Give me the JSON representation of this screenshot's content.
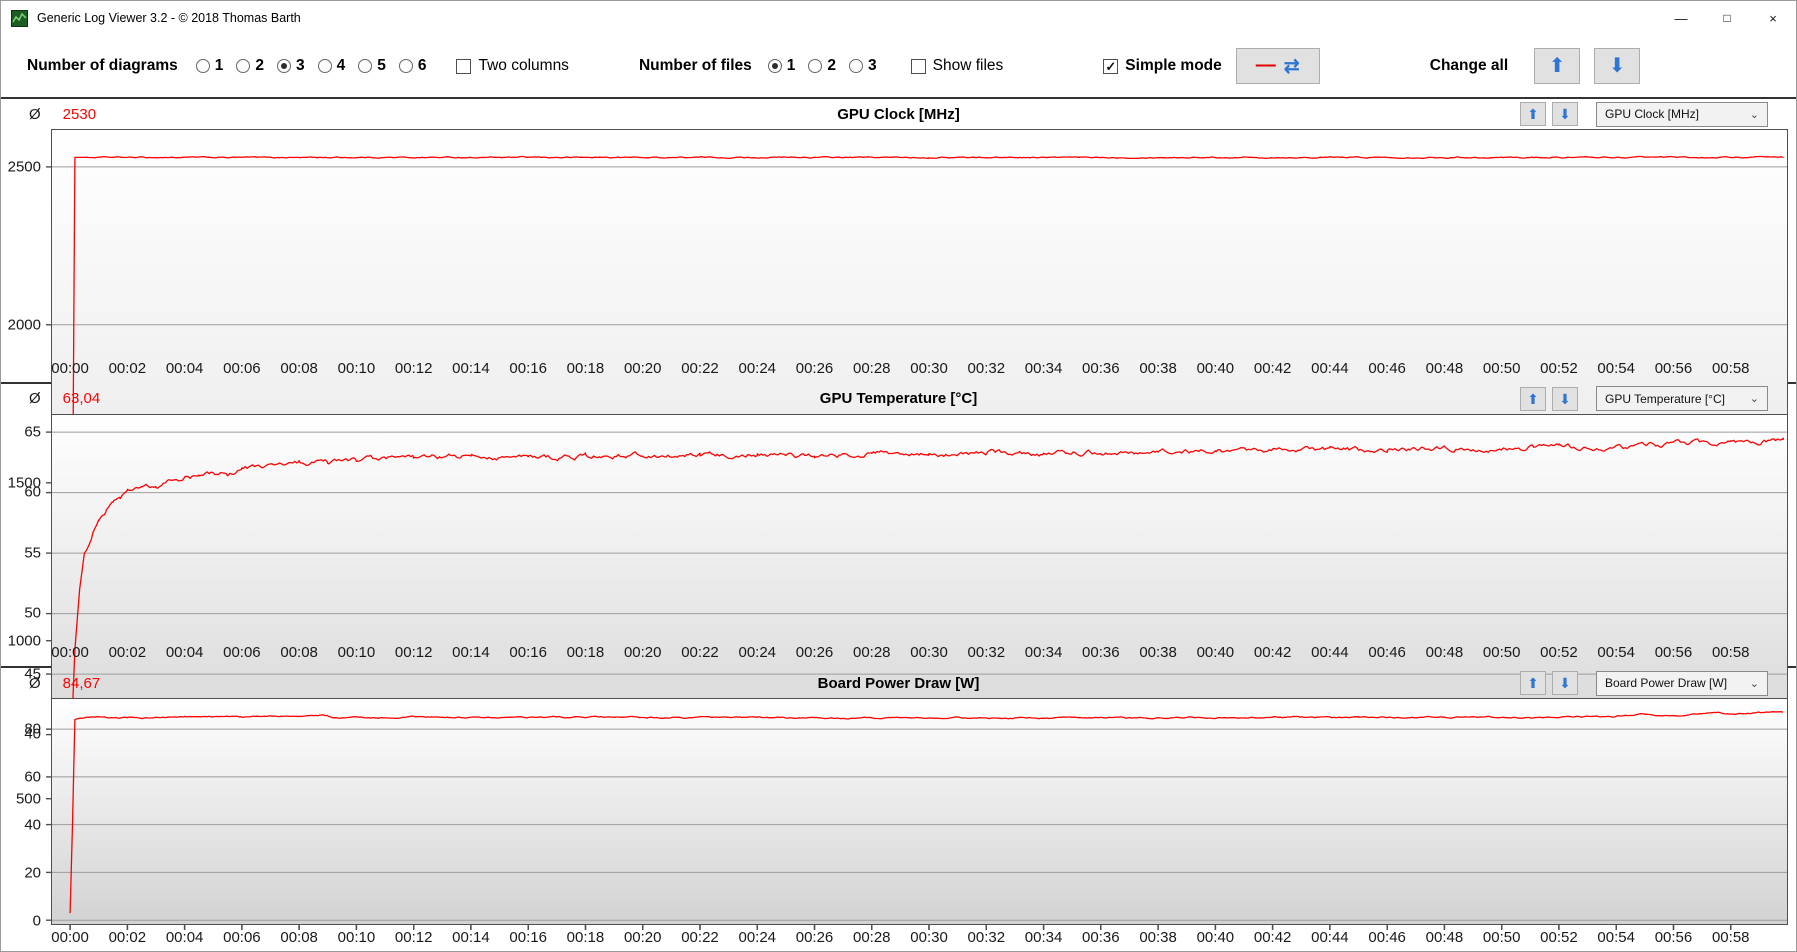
{
  "window": {
    "title": "Generic Log Viewer 3.2 - © 2018 Thomas Barth",
    "controls": {
      "minimize": "—",
      "maximize": "□",
      "close": "×"
    }
  },
  "toolbar": {
    "diagrams_label": "Number of diagrams",
    "diagram_options": [
      "1",
      "2",
      "3",
      "4",
      "5",
      "6"
    ],
    "diagrams_selected": "3",
    "two_columns_label": "Two columns",
    "two_columns_checked": false,
    "files_label": "Number of files",
    "file_options": [
      "1",
      "2",
      "3"
    ],
    "files_selected": "1",
    "show_files_label": "Show files",
    "show_files_checked": false,
    "simple_mode_label": "Simple mode",
    "simple_mode_checked": true,
    "change_all_label": "Change all"
  },
  "icons": {
    "dash": "—",
    "refresh": "⇄",
    "up_arrow": "⬆",
    "down_arrow": "⬇",
    "chevron": "⌄",
    "check": "✓"
  },
  "colors": {
    "line_red": "#ff0000",
    "arrow_blue": "#2e75d4",
    "grid": "#9c9c9c",
    "plot_border": "#4f4f4f",
    "plot_grad_top": "#ffffff",
    "plot_grad_bottom": "#d2d2d2"
  },
  "charts_common": {
    "average_symbol": "Ø"
  },
  "chart_data": [
    {
      "type": "line",
      "title": "GPU Clock [MHz]",
      "average": "2530",
      "dropdown_value": "GPU Clock [MHz]",
      "ylim": [
        100,
        2620
      ],
      "yticks": [
        500,
        1000,
        1500,
        2000,
        2500
      ],
      "x_domain_seconds": [
        -40,
        3600
      ],
      "xtick_start_seconds": 0,
      "xtick_interval_seconds": 120,
      "xtick_labels": [
        "00:00",
        "00:02",
        "00:04",
        "00:06",
        "00:08",
        "00:10",
        "00:12",
        "00:14",
        "00:16",
        "00:18",
        "00:20",
        "00:22",
        "00:24",
        "00:26",
        "00:28",
        "00:30",
        "00:32",
        "00:34",
        "00:36",
        "00:38",
        "00:40",
        "00:42",
        "00:44",
        "00:46",
        "00:48",
        "00:50",
        "00:52",
        "00:54",
        "00:56",
        "00:58"
      ],
      "line_color": "#ff0000",
      "noise_amplitude": 3,
      "points_time_value": [
        [
          0,
          207
        ],
        [
          3,
          500
        ],
        [
          6,
          1600
        ],
        [
          10,
          2530
        ],
        [
          1800,
          2530
        ],
        [
          3590,
          2530
        ]
      ]
    },
    {
      "type": "line",
      "title": "GPU Temperature [°C]",
      "average": "63,04",
      "dropdown_value": "GPU Temperature [°C]",
      "ylim": [
        36,
        66.5
      ],
      "yticks": [
        40,
        45,
        50,
        55,
        60,
        65
      ],
      "x_domain_seconds": [
        -40,
        3600
      ],
      "xtick_start_seconds": 0,
      "xtick_interval_seconds": 120,
      "xtick_labels": [
        "00:00",
        "00:02",
        "00:04",
        "00:06",
        "00:08",
        "00:10",
        "00:12",
        "00:14",
        "00:16",
        "00:18",
        "00:20",
        "00:22",
        "00:24",
        "00:26",
        "00:28",
        "00:30",
        "00:32",
        "00:34",
        "00:36",
        "00:38",
        "00:40",
        "00:42",
        "00:44",
        "00:46",
        "00:48",
        "00:50",
        "00:52",
        "00:54",
        "00:56",
        "00:58"
      ],
      "line_color": "#ff0000",
      "noise_amplitude": 0.35,
      "points_time_value": [
        [
          0,
          37
        ],
        [
          10,
          47
        ],
        [
          20,
          52
        ],
        [
          30,
          55
        ],
        [
          45,
          56.5
        ],
        [
          60,
          57.8
        ],
        [
          75,
          58.3
        ],
        [
          90,
          59.3
        ],
        [
          105,
          59.6
        ],
        [
          120,
          60
        ],
        [
          150,
          60.5
        ],
        [
          180,
          60.3
        ],
        [
          210,
          61
        ],
        [
          240,
          61.2
        ],
        [
          270,
          61.3
        ],
        [
          300,
          61.6
        ],
        [
          330,
          61.5
        ],
        [
          360,
          62
        ],
        [
          420,
          62.2
        ],
        [
          480,
          62.4
        ],
        [
          540,
          62.5
        ],
        [
          600,
          62.7
        ],
        [
          720,
          62.8
        ],
        [
          840,
          63
        ],
        [
          960,
          62.9
        ],
        [
          1080,
          63
        ],
        [
          1200,
          63.1
        ],
        [
          1320,
          63
        ],
        [
          1440,
          63.2
        ],
        [
          1560,
          63
        ],
        [
          1680,
          63.2
        ],
        [
          1800,
          63.1
        ],
        [
          1920,
          63.3
        ],
        [
          2040,
          63.2
        ],
        [
          2160,
          63.4
        ],
        [
          2280,
          63.3
        ],
        [
          2400,
          63.5
        ],
        [
          2520,
          63.4
        ],
        [
          2640,
          63.6
        ],
        [
          2760,
          63.5
        ],
        [
          2880,
          63.7
        ],
        [
          3000,
          63.6
        ],
        [
          3120,
          63.8
        ],
        [
          3240,
          63.7
        ],
        [
          3360,
          64
        ],
        [
          3480,
          64.2
        ],
        [
          3590,
          64.3
        ]
      ]
    },
    {
      "type": "line",
      "title": "Board Power Draw [W]",
      "average": "84,67",
      "dropdown_value": "Board Power Draw [W]",
      "ylim": [
        -2,
        93
      ],
      "yticks": [
        0,
        20,
        40,
        60,
        80
      ],
      "x_domain_seconds": [
        -40,
        3600
      ],
      "xtick_start_seconds": 0,
      "xtick_interval_seconds": 120,
      "xtick_labels": [
        "00:00",
        "00:02",
        "00:04",
        "00:06",
        "00:08",
        "00:10",
        "00:12",
        "00:14",
        "00:16",
        "00:18",
        "00:20",
        "00:22",
        "00:24",
        "00:26",
        "00:28",
        "00:30",
        "00:32",
        "00:34",
        "00:36",
        "00:38",
        "00:40",
        "00:42",
        "00:44",
        "00:46",
        "00:48",
        "00:50",
        "00:52",
        "00:54",
        "00:56",
        "00:58"
      ],
      "line_color": "#ff0000",
      "noise_amplitude": 0.45,
      "points_time_value": [
        [
          0,
          3
        ],
        [
          5,
          40
        ],
        [
          10,
          84
        ],
        [
          20,
          84.5
        ],
        [
          60,
          84.8
        ],
        [
          120,
          84.6
        ],
        [
          240,
          85
        ],
        [
          360,
          85.2
        ],
        [
          480,
          85.4
        ],
        [
          540,
          85.5
        ],
        [
          560,
          84.6
        ],
        [
          600,
          84.8
        ],
        [
          720,
          85
        ],
        [
          900,
          84.8
        ],
        [
          1080,
          85
        ],
        [
          1260,
          84.7
        ],
        [
          1440,
          84.9
        ],
        [
          1620,
          84.6
        ],
        [
          1800,
          84.8
        ],
        [
          1980,
          84.6
        ],
        [
          2160,
          84.8
        ],
        [
          2340,
          84.7
        ],
        [
          2520,
          84.9
        ],
        [
          2700,
          84.8
        ],
        [
          2880,
          85
        ],
        [
          3060,
          84.9
        ],
        [
          3240,
          85.2
        ],
        [
          3300,
          86.5
        ],
        [
          3330,
          85.5
        ],
        [
          3390,
          86
        ],
        [
          3450,
          87.3
        ],
        [
          3480,
          86.2
        ],
        [
          3540,
          87
        ],
        [
          3590,
          87
        ]
      ]
    }
  ]
}
